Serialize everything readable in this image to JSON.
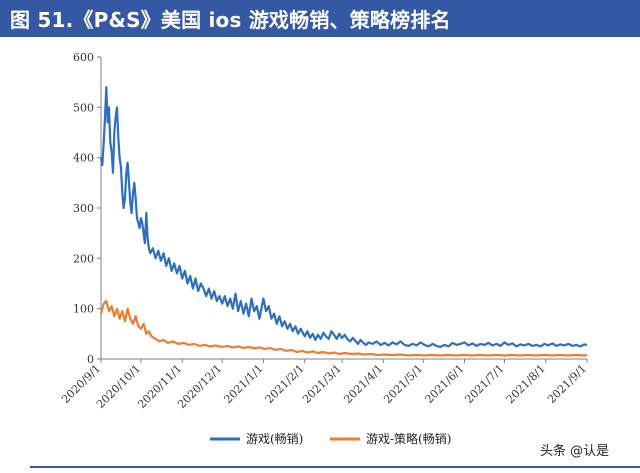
{
  "header": {
    "title": "图 51.《P&S》美国 ios 游戏畅销、策略榜排名"
  },
  "watermark": "头条 @认是",
  "colors": {
    "header_bg": "#3558a4",
    "series_game": "#2f6fc0",
    "series_strategy": "#ed7d31"
  },
  "chart_data": {
    "type": "line",
    "title": "",
    "xlabel": "",
    "ylabel": "",
    "ylim": [
      0,
      600
    ],
    "yticks": [
      0,
      100,
      200,
      300,
      400,
      500,
      600
    ],
    "xlim": [
      "2020-09-01",
      "2021-09-01"
    ],
    "xticks": [
      "2020/9/1",
      "2020/10/1",
      "2020/11/1",
      "2020/12/1",
      "2021/1/1",
      "2021/2/1",
      "2021/3/1",
      "2021/4/1",
      "2021/5/1",
      "2021/6/1",
      "2021/7/1",
      "2021/8/1",
      "2021/9/1"
    ],
    "grid": false,
    "legend": "bottom",
    "series": [
      {
        "name": "游戏(畅销)",
        "color": "#2f6fc0",
        "points": [
          [
            "2020-09-01",
            400
          ],
          [
            "2020-09-02",
            385
          ],
          [
            "2020-09-03",
            430
          ],
          [
            "2020-09-04",
            480
          ],
          [
            "2020-09-05",
            540
          ],
          [
            "2020-09-06",
            470
          ],
          [
            "2020-09-07",
            500
          ],
          [
            "2020-09-08",
            430
          ],
          [
            "2020-09-09",
            410
          ],
          [
            "2020-09-10",
            370
          ],
          [
            "2020-09-11",
            450
          ],
          [
            "2020-09-12",
            480
          ],
          [
            "2020-09-13",
            500
          ],
          [
            "2020-09-14",
            440
          ],
          [
            "2020-09-15",
            400
          ],
          [
            "2020-09-16",
            380
          ],
          [
            "2020-09-17",
            330
          ],
          [
            "2020-09-18",
            300
          ],
          [
            "2020-09-19",
            320
          ],
          [
            "2020-09-20",
            370
          ],
          [
            "2020-09-21",
            390
          ],
          [
            "2020-09-22",
            350
          ],
          [
            "2020-09-23",
            310
          ],
          [
            "2020-09-24",
            290
          ],
          [
            "2020-09-25",
            330
          ],
          [
            "2020-09-26",
            350
          ],
          [
            "2020-09-27",
            320
          ],
          [
            "2020-09-28",
            280
          ],
          [
            "2020-09-29",
            270
          ],
          [
            "2020-09-30",
            260
          ],
          [
            "2020-10-01",
            280
          ],
          [
            "2020-10-02",
            270
          ],
          [
            "2020-10-03",
            250
          ],
          [
            "2020-10-04",
            230
          ],
          [
            "2020-10-05",
            290
          ],
          [
            "2020-10-06",
            240
          ],
          [
            "2020-10-07",
            220
          ],
          [
            "2020-10-08",
            210
          ],
          [
            "2020-10-10",
            220
          ],
          [
            "2020-10-12",
            200
          ],
          [
            "2020-10-14",
            215
          ],
          [
            "2020-10-16",
            195
          ],
          [
            "2020-10-18",
            210
          ],
          [
            "2020-10-20",
            185
          ],
          [
            "2020-10-22",
            200
          ],
          [
            "2020-10-24",
            175
          ],
          [
            "2020-10-26",
            190
          ],
          [
            "2020-10-28",
            170
          ],
          [
            "2020-10-30",
            185
          ],
          [
            "2020-11-01",
            160
          ],
          [
            "2020-11-03",
            175
          ],
          [
            "2020-11-05",
            150
          ],
          [
            "2020-11-07",
            165
          ],
          [
            "2020-11-09",
            140
          ],
          [
            "2020-11-11",
            160
          ],
          [
            "2020-11-13",
            135
          ],
          [
            "2020-11-15",
            150
          ],
          [
            "2020-11-17",
            140
          ],
          [
            "2020-11-19",
            125
          ],
          [
            "2020-11-21",
            140
          ],
          [
            "2020-11-23",
            120
          ],
          [
            "2020-11-25",
            135
          ],
          [
            "2020-11-27",
            115
          ],
          [
            "2020-11-29",
            125
          ],
          [
            "2020-12-01",
            110
          ],
          [
            "2020-12-03",
            125
          ],
          [
            "2020-12-05",
            105
          ],
          [
            "2020-12-07",
            120
          ],
          [
            "2020-12-09",
            100
          ],
          [
            "2020-12-11",
            130
          ],
          [
            "2020-12-13",
            95
          ],
          [
            "2020-12-15",
            115
          ],
          [
            "2020-12-17",
            90
          ],
          [
            "2020-12-19",
            110
          ],
          [
            "2020-12-21",
            85
          ],
          [
            "2020-12-23",
            120
          ],
          [
            "2020-12-25",
            95
          ],
          [
            "2020-12-27",
            105
          ],
          [
            "2020-12-29",
            80
          ],
          [
            "2021-01-01",
            120
          ],
          [
            "2021-01-03",
            95
          ],
          [
            "2021-01-05",
            105
          ],
          [
            "2021-01-07",
            80
          ],
          [
            "2021-01-09",
            90
          ],
          [
            "2021-01-11",
            70
          ],
          [
            "2021-01-13",
            85
          ],
          [
            "2021-01-15",
            65
          ],
          [
            "2021-01-17",
            75
          ],
          [
            "2021-01-19",
            60
          ],
          [
            "2021-01-21",
            70
          ],
          [
            "2021-01-23",
            55
          ],
          [
            "2021-01-25",
            65
          ],
          [
            "2021-01-27",
            50
          ],
          [
            "2021-01-29",
            60
          ],
          [
            "2021-02-01",
            45
          ],
          [
            "2021-02-03",
            55
          ],
          [
            "2021-02-05",
            42
          ],
          [
            "2021-02-07",
            50
          ],
          [
            "2021-02-09",
            38
          ],
          [
            "2021-02-11",
            48
          ],
          [
            "2021-02-13",
            40
          ],
          [
            "2021-02-15",
            52
          ],
          [
            "2021-02-17",
            45
          ],
          [
            "2021-02-19",
            40
          ],
          [
            "2021-02-21",
            55
          ],
          [
            "2021-02-23",
            48
          ],
          [
            "2021-02-25",
            40
          ],
          [
            "2021-02-27",
            50
          ],
          [
            "2021-03-01",
            42
          ],
          [
            "2021-03-03",
            48
          ],
          [
            "2021-03-05",
            40
          ],
          [
            "2021-03-07",
            35
          ],
          [
            "2021-03-09",
            42
          ],
          [
            "2021-03-11",
            36
          ],
          [
            "2021-03-13",
            30
          ],
          [
            "2021-03-15",
            38
          ],
          [
            "2021-03-17",
            32
          ],
          [
            "2021-03-19",
            28
          ],
          [
            "2021-03-21",
            33
          ],
          [
            "2021-03-24",
            30
          ],
          [
            "2021-03-27",
            35
          ],
          [
            "2021-03-30",
            28
          ],
          [
            "2021-04-02",
            32
          ],
          [
            "2021-04-05",
            27
          ],
          [
            "2021-04-08",
            33
          ],
          [
            "2021-04-11",
            29
          ],
          [
            "2021-04-14",
            35
          ],
          [
            "2021-04-17",
            28
          ],
          [
            "2021-04-20",
            26
          ],
          [
            "2021-04-23",
            30
          ],
          [
            "2021-04-26",
            27
          ],
          [
            "2021-04-29",
            33
          ],
          [
            "2021-05-02",
            28
          ],
          [
            "2021-05-05",
            25
          ],
          [
            "2021-05-08",
            30
          ],
          [
            "2021-05-11",
            26
          ],
          [
            "2021-05-14",
            24
          ],
          [
            "2021-05-17",
            28
          ],
          [
            "2021-05-20",
            25
          ],
          [
            "2021-05-23",
            32
          ],
          [
            "2021-05-26",
            28
          ],
          [
            "2021-05-29",
            30
          ],
          [
            "2021-06-01",
            33
          ],
          [
            "2021-06-04",
            27
          ],
          [
            "2021-06-07",
            31
          ],
          [
            "2021-06-10",
            26
          ],
          [
            "2021-06-13",
            30
          ],
          [
            "2021-06-16",
            28
          ],
          [
            "2021-06-19",
            32
          ],
          [
            "2021-06-22",
            27
          ],
          [
            "2021-06-25",
            30
          ],
          [
            "2021-06-28",
            26
          ],
          [
            "2021-07-01",
            33
          ],
          [
            "2021-07-04",
            28
          ],
          [
            "2021-07-07",
            31
          ],
          [
            "2021-07-10",
            25
          ],
          [
            "2021-07-13",
            29
          ],
          [
            "2021-07-16",
            27
          ],
          [
            "2021-07-19",
            30
          ],
          [
            "2021-07-22",
            26
          ],
          [
            "2021-07-25",
            28
          ],
          [
            "2021-07-28",
            25
          ],
          [
            "2021-07-31",
            30
          ],
          [
            "2021-08-03",
            27
          ],
          [
            "2021-08-06",
            31
          ],
          [
            "2021-08-09",
            26
          ],
          [
            "2021-08-12",
            29
          ],
          [
            "2021-08-15",
            27
          ],
          [
            "2021-08-18",
            30
          ],
          [
            "2021-08-21",
            26
          ],
          [
            "2021-08-24",
            28
          ],
          [
            "2021-08-27",
            25
          ],
          [
            "2021-08-30",
            29
          ],
          [
            "2021-09-01",
            28
          ]
        ]
      },
      {
        "name": "游戏-策略(畅销)",
        "color": "#ed7d31",
        "points": [
          [
            "2020-09-01",
            90
          ],
          [
            "2020-09-03",
            110
          ],
          [
            "2020-09-05",
            115
          ],
          [
            "2020-09-07",
            95
          ],
          [
            "2020-09-09",
            105
          ],
          [
            "2020-09-11",
            85
          ],
          [
            "2020-09-13",
            100
          ],
          [
            "2020-09-15",
            80
          ],
          [
            "2020-09-17",
            95
          ],
          [
            "2020-09-19",
            75
          ],
          [
            "2020-09-21",
            100
          ],
          [
            "2020-09-23",
            80
          ],
          [
            "2020-09-25",
            70
          ],
          [
            "2020-09-27",
            85
          ],
          [
            "2020-09-29",
            65
          ],
          [
            "2020-10-01",
            60
          ],
          [
            "2020-10-03",
            70
          ],
          [
            "2020-10-05",
            50
          ],
          [
            "2020-10-07",
            55
          ],
          [
            "2020-10-09",
            45
          ],
          [
            "2020-10-12",
            40
          ],
          [
            "2020-10-15",
            35
          ],
          [
            "2020-10-18",
            38
          ],
          [
            "2020-10-21",
            32
          ],
          [
            "2020-10-25",
            35
          ],
          [
            "2020-10-29",
            30
          ],
          [
            "2020-11-02",
            32
          ],
          [
            "2020-11-06",
            28
          ],
          [
            "2020-11-10",
            30
          ],
          [
            "2020-11-14",
            26
          ],
          [
            "2020-11-18",
            28
          ],
          [
            "2020-11-22",
            25
          ],
          [
            "2020-11-26",
            27
          ],
          [
            "2020-12-01",
            24
          ],
          [
            "2020-12-05",
            26
          ],
          [
            "2020-12-09",
            23
          ],
          [
            "2020-12-13",
            25
          ],
          [
            "2020-12-17",
            22
          ],
          [
            "2020-12-21",
            24
          ],
          [
            "2020-12-25",
            21
          ],
          [
            "2020-12-29",
            23
          ],
          [
            "2021-01-02",
            20
          ],
          [
            "2021-01-06",
            22
          ],
          [
            "2021-01-10",
            18
          ],
          [
            "2021-01-14",
            20
          ],
          [
            "2021-01-18",
            16
          ],
          [
            "2021-01-22",
            18
          ],
          [
            "2021-01-26",
            14
          ],
          [
            "2021-01-30",
            16
          ],
          [
            "2021-02-03",
            13
          ],
          [
            "2021-02-07",
            15
          ],
          [
            "2021-02-11",
            12
          ],
          [
            "2021-02-15",
            14
          ],
          [
            "2021-02-19",
            11
          ],
          [
            "2021-02-23",
            13
          ],
          [
            "2021-02-27",
            10
          ],
          [
            "2021-03-03",
            12
          ],
          [
            "2021-03-08",
            10
          ],
          [
            "2021-03-13",
            11
          ],
          [
            "2021-03-18",
            9
          ],
          [
            "2021-03-23",
            10
          ],
          [
            "2021-03-28",
            8
          ],
          [
            "2021-04-02",
            9
          ],
          [
            "2021-04-08",
            8
          ],
          [
            "2021-04-14",
            9
          ],
          [
            "2021-04-20",
            7
          ],
          [
            "2021-04-26",
            8
          ],
          [
            "2021-05-02",
            7
          ],
          [
            "2021-05-08",
            8
          ],
          [
            "2021-05-14",
            7
          ],
          [
            "2021-05-20",
            8
          ],
          [
            "2021-05-26",
            7
          ],
          [
            "2021-06-01",
            8
          ],
          [
            "2021-06-07",
            7
          ],
          [
            "2021-06-13",
            8
          ],
          [
            "2021-06-19",
            7
          ],
          [
            "2021-06-25",
            8
          ],
          [
            "2021-07-01",
            7
          ],
          [
            "2021-07-07",
            8
          ],
          [
            "2021-07-13",
            7
          ],
          [
            "2021-07-19",
            8
          ],
          [
            "2021-07-25",
            7
          ],
          [
            "2021-07-31",
            8
          ],
          [
            "2021-08-06",
            7
          ],
          [
            "2021-08-12",
            8
          ],
          [
            "2021-08-18",
            7
          ],
          [
            "2021-08-24",
            8
          ],
          [
            "2021-08-30",
            7
          ],
          [
            "2021-09-01",
            8
          ]
        ]
      }
    ]
  }
}
